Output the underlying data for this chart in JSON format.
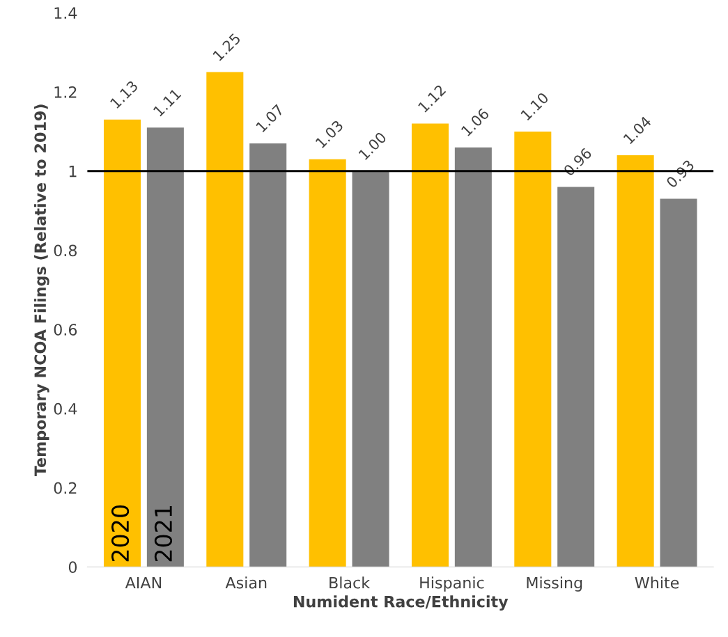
{
  "chart_data": {
    "type": "bar",
    "xlabel": "Numident Race/Ethnicity",
    "ylabel": "Temporary NCOA Filings (Relative to 2019)",
    "categories": [
      "AIAN",
      "Asian",
      "Black",
      "Hispanic",
      "Missing",
      "White"
    ],
    "series": [
      {
        "name": "2020",
        "color": "#ffc000",
        "values": [
          1.13,
          1.25,
          1.03,
          1.12,
          1.1,
          1.04
        ],
        "value_labels": [
          "1.13",
          "1.25",
          "1.03",
          "1.12",
          "1.10",
          "1.04"
        ]
      },
      {
        "name": "2021",
        "color": "#808080",
        "values": [
          1.11,
          1.07,
          1.0,
          1.06,
          0.96,
          0.93
        ],
        "value_labels": [
          "1.11",
          "1.07",
          "1.00",
          "1.06",
          "0.96",
          "0.93"
        ]
      }
    ],
    "ylim": [
      0,
      1.4
    ],
    "yticks": [
      {
        "value": 0,
        "label": "0"
      },
      {
        "value": 0.2,
        "label": "0.2"
      },
      {
        "value": 0.4,
        "label": "0.4"
      },
      {
        "value": 0.6,
        "label": "0.6"
      },
      {
        "value": 0.8,
        "label": "0.8"
      },
      {
        "value": 1,
        "label": "1"
      },
      {
        "value": 1.2,
        "label": "1.2"
      },
      {
        "value": 1.4,
        "label": "1.4"
      }
    ],
    "ref_lines": [
      {
        "axis": "y",
        "value": 1,
        "color": "#000000"
      }
    ],
    "grid": false,
    "legend": false
  }
}
